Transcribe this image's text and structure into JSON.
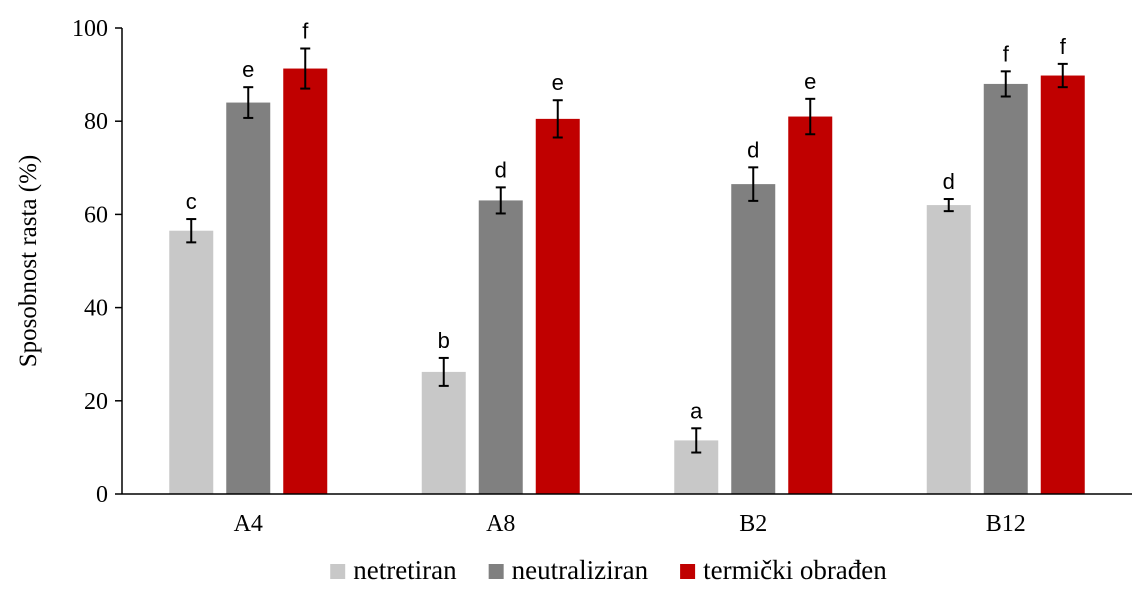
{
  "chart_data": {
    "type": "bar",
    "title": "",
    "xlabel": "",
    "ylabel": "Sposobnost rasta (%)",
    "ylim": [
      0,
      100
    ],
    "yticks": [
      0,
      20,
      40,
      60,
      80,
      100
    ],
    "grid": false,
    "legend_position": "bottom",
    "categories": [
      "A4",
      "A8",
      "B2",
      "B12"
    ],
    "series": [
      {
        "name": "netretiran",
        "color": "#c8c8c8",
        "values": [
          56.5,
          26.2,
          11.5,
          62.0
        ],
        "errors": [
          2.5,
          3.0,
          2.6,
          1.3
        ],
        "labels": [
          "c",
          "b",
          "a",
          "d"
        ]
      },
      {
        "name": "neutraliziran",
        "color": "#808080",
        "values": [
          84.0,
          63.0,
          66.5,
          88.0
        ],
        "errors": [
          3.3,
          2.8,
          3.6,
          2.7
        ],
        "labels": [
          "e",
          "d",
          "d",
          "f"
        ]
      },
      {
        "name": "termički obrađen",
        "color": "#c00000",
        "values": [
          91.3,
          80.5,
          81.0,
          89.8
        ],
        "errors": [
          4.3,
          4.0,
          3.8,
          2.5
        ],
        "labels": [
          "f",
          "e",
          "e",
          "f"
        ]
      }
    ]
  }
}
